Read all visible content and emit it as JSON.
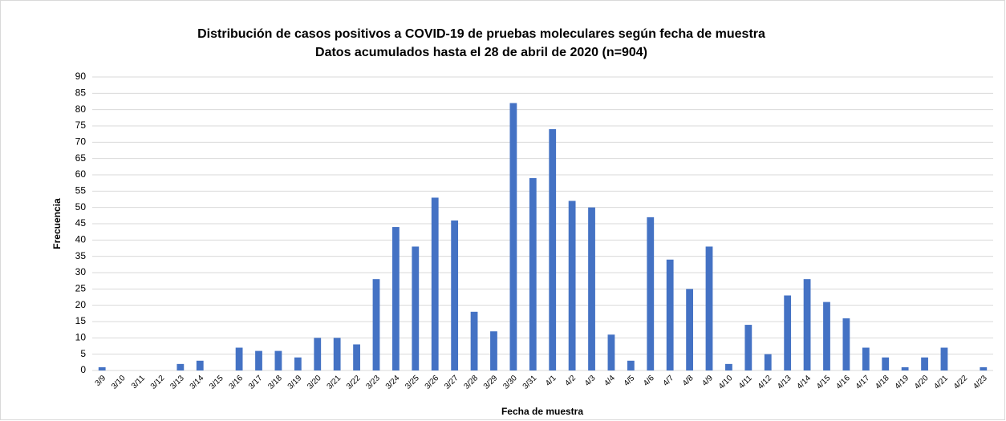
{
  "chart_data": {
    "type": "bar",
    "title": [
      "Distribución de casos positivos a COVID-19 de pruebas moleculares según fecha de muestra",
      "Datos acumulados hasta el 28 de abril de 2020 (n=904)"
    ],
    "x_label": "Fecha de muestra",
    "y_label": "Frecuencia",
    "categories": [
      "3/9",
      "3/10",
      "3/11",
      "3/12",
      "3/13",
      "3/14",
      "3/15",
      "3/16",
      "3/17",
      "3/18",
      "3/19",
      "3/20",
      "3/21",
      "3/22",
      "3/23",
      "3/24",
      "3/25",
      "3/26",
      "3/27",
      "3/28",
      "3/29",
      "3/30",
      "3/31",
      "4/1",
      "4/2",
      "4/3",
      "4/4",
      "4/5",
      "4/6",
      "4/7",
      "4/8",
      "4/9",
      "4/10",
      "4/11",
      "4/12",
      "4/13",
      "4/14",
      "4/15",
      "4/16",
      "4/17",
      "4/18",
      "4/19",
      "4/20",
      "4/21",
      "4/22",
      "4/23"
    ],
    "values": [
      1,
      0,
      0,
      0,
      2,
      3,
      0,
      7,
      6,
      6,
      4,
      10,
      10,
      8,
      28,
      44,
      38,
      53,
      46,
      18,
      12,
      82,
      59,
      74,
      52,
      50,
      11,
      3,
      47,
      34,
      25,
      38,
      2,
      14,
      5,
      23,
      28,
      21,
      16,
      7,
      4,
      1,
      4,
      7,
      0,
      1
    ],
    "color": "#4472c4",
    "ylim": [
      0,
      90
    ],
    "yticks": [
      0,
      5,
      10,
      15,
      20,
      25,
      30,
      35,
      40,
      45,
      50,
      55,
      60,
      65,
      70,
      75,
      80,
      85,
      90
    ],
    "grid": true
  }
}
